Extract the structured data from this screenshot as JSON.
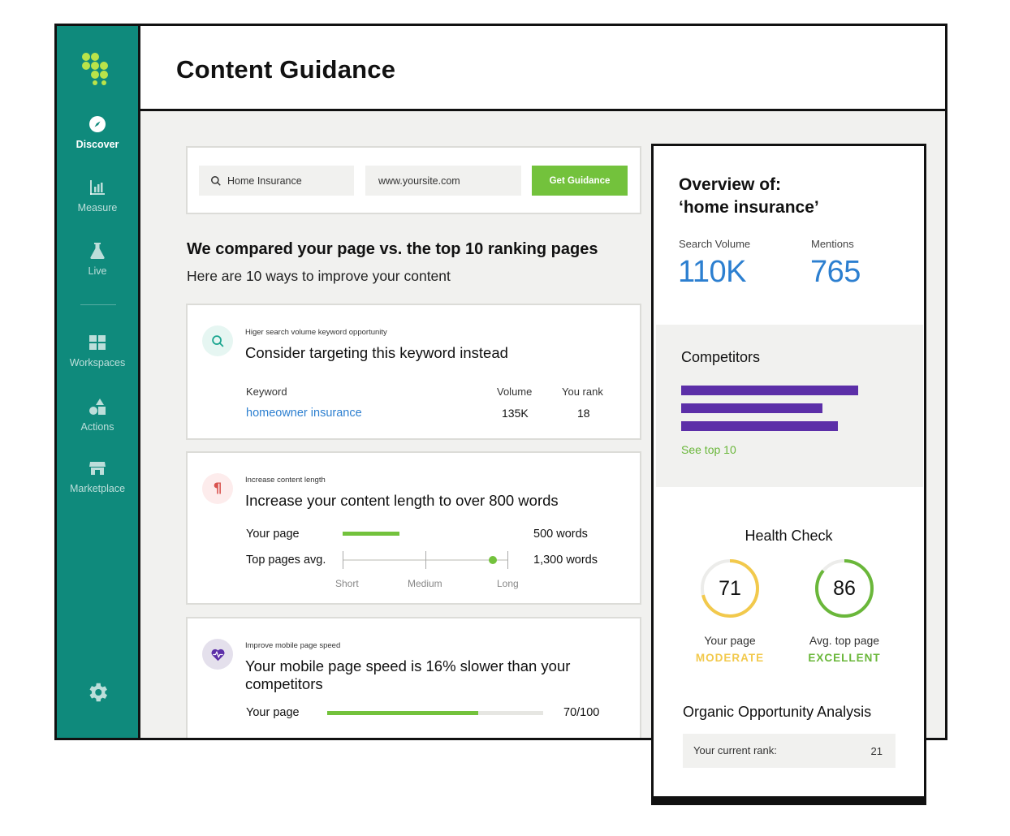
{
  "header": {
    "title": "Content Guidance"
  },
  "sidebar": {
    "items": [
      {
        "label": "Discover",
        "icon": "compass-icon",
        "active": true
      },
      {
        "label": "Measure",
        "icon": "bar-chart-icon"
      },
      {
        "label": "Live",
        "icon": "flask-icon"
      },
      {
        "label": "Workspaces",
        "icon": "grid-icon"
      },
      {
        "label": "Actions",
        "icon": "shapes-icon"
      },
      {
        "label": "Marketplace",
        "icon": "storefront-icon"
      }
    ],
    "settings_icon": "gear-icon"
  },
  "search": {
    "keyword_value": "Home Insurance",
    "url_value": "www.yoursite.com",
    "button_label": "Get Guidance"
  },
  "comparison": {
    "title": "We compared your page vs. the top 10 ranking pages",
    "subtitle": "Here are 10 ways to improve your content"
  },
  "tips": {
    "keyword": {
      "kicker": "Higer search volume keyword opportunity",
      "heading": "Consider targeting this keyword instead",
      "col_keyword": "Keyword",
      "col_volume": "Volume",
      "col_rank": "You rank",
      "keyword_value": "homeowner insurance",
      "volume_value": "135K",
      "rank_value": "18"
    },
    "length": {
      "kicker": "Increase content length",
      "heading": "Increase your content length to over 800 words",
      "your_page_label": "Your page",
      "your_page_value": "500 words",
      "top_label": "Top pages avg.",
      "top_value": "1,300 words",
      "scale": [
        "Short",
        "Medium",
        "Long"
      ]
    },
    "speed": {
      "kicker": "Improve mobile page speed",
      "heading": "Your mobile page speed is 16% slower than your competitors",
      "your_page_label": "Your page",
      "your_page_value": "70/100",
      "progress": 0.7
    }
  },
  "overview": {
    "title_line1": "Overview of:",
    "title_line2": "‘home insurance’",
    "search_volume_label": "Search Volume",
    "search_volume_value": "110K",
    "mentions_label": "Mentions",
    "mentions_value": "765",
    "competitors_title": "Competitors",
    "see_top_label": "See top 10",
    "health_title": "Health Check",
    "your_page_score": "71",
    "your_page_label": "Your page",
    "your_page_status": "MODERATE",
    "top_page_score": "86",
    "top_page_label": "Avg. top page",
    "top_page_status": "EXCELLENT",
    "opportunity_title": "Organic Opportunity Analysis",
    "rank_label": "Your current rank:",
    "rank_value": "21"
  },
  "colors": {
    "sidebar": "#0f8a7c",
    "accent_green": "#73c23c",
    "link_blue": "#2c7fd0",
    "competitor_purple": "#5c2fa8",
    "moderate_yellow": "#f2c94c",
    "excellent_green": "#6ab73a"
  }
}
